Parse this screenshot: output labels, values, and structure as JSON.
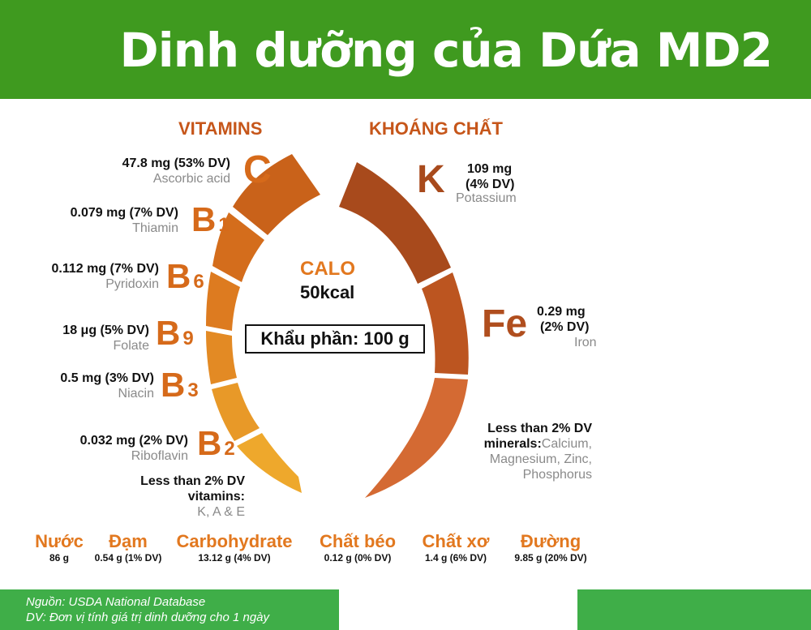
{
  "title": "Dinh dưỡng của Dứa MD2",
  "sections": {
    "vitamins": "VITAMINS",
    "minerals": "KHOÁNG CHẤT"
  },
  "vitamins": [
    {
      "symbol": "C",
      "sub": "",
      "amount": "47.8 mg (53% DV)",
      "name": "Ascorbic acid"
    },
    {
      "symbol": "B",
      "sub": "1",
      "amount": "0.079 mg (7% DV)",
      "name": "Thiamin"
    },
    {
      "symbol": "B",
      "sub": "6",
      "amount": "0.112 mg (7% DV)",
      "name": "Pyridoxin"
    },
    {
      "symbol": "B",
      "sub": "9",
      "amount": "18 μg (5% DV)",
      "name": "Folate"
    },
    {
      "symbol": "B",
      "sub": "3",
      "amount": "0.5 mg (3% DV)",
      "name": "Niacin"
    },
    {
      "symbol": "B",
      "sub": "2",
      "amount": "0.032 mg (2% DV)",
      "name": "Riboflavin"
    }
  ],
  "vitamins_other": {
    "line1": "Less than 2% DV",
    "line2": "vitamins:",
    "items": "K, A & E"
  },
  "minerals": [
    {
      "symbol": "K",
      "amount1": "109 mg",
      "amount2": "(4% DV)",
      "name": "Potassium"
    },
    {
      "symbol": "Fe",
      "amount1": "0.29 mg",
      "amount2": "(2% DV)",
      "name": "Iron"
    }
  ],
  "minerals_other": {
    "line1": "Less than 2% DV",
    "line2": "minerals:",
    "line2b": "Calcium,",
    "line3": "Magnesium, Zinc,",
    "line4": "Phosphorus"
  },
  "calories": {
    "label": "CALO",
    "value": "50kcal"
  },
  "serving": "Khẩu phần: 100 g",
  "nutrients": [
    {
      "name": "Nước",
      "value": "86 g"
    },
    {
      "name": "Đạm",
      "value": "0.54 g (1% DV)"
    },
    {
      "name": "Carbohydrate",
      "value": "13.12 g (4% DV)"
    },
    {
      "name": "Chất béo",
      "value": "0.12 g (0% DV)"
    },
    {
      "name": "Chất xơ",
      "value": "1.4 g (6% DV)"
    },
    {
      "name": "Đường",
      "value": "9.85 g (20% DV)"
    }
  ],
  "footer": {
    "source": "Nguồn: USDA National Database",
    "dv_note": "DV: Đơn vị tính giá trị dinh dưỡng cho 1 ngày"
  },
  "colors": {
    "header_green": "#3f9a1f",
    "footer_green": "#3fae48",
    "vitamin_orange": "#d66a1a",
    "mineral_brown": "#a84a1c",
    "section_title": "#c6561a"
  }
}
